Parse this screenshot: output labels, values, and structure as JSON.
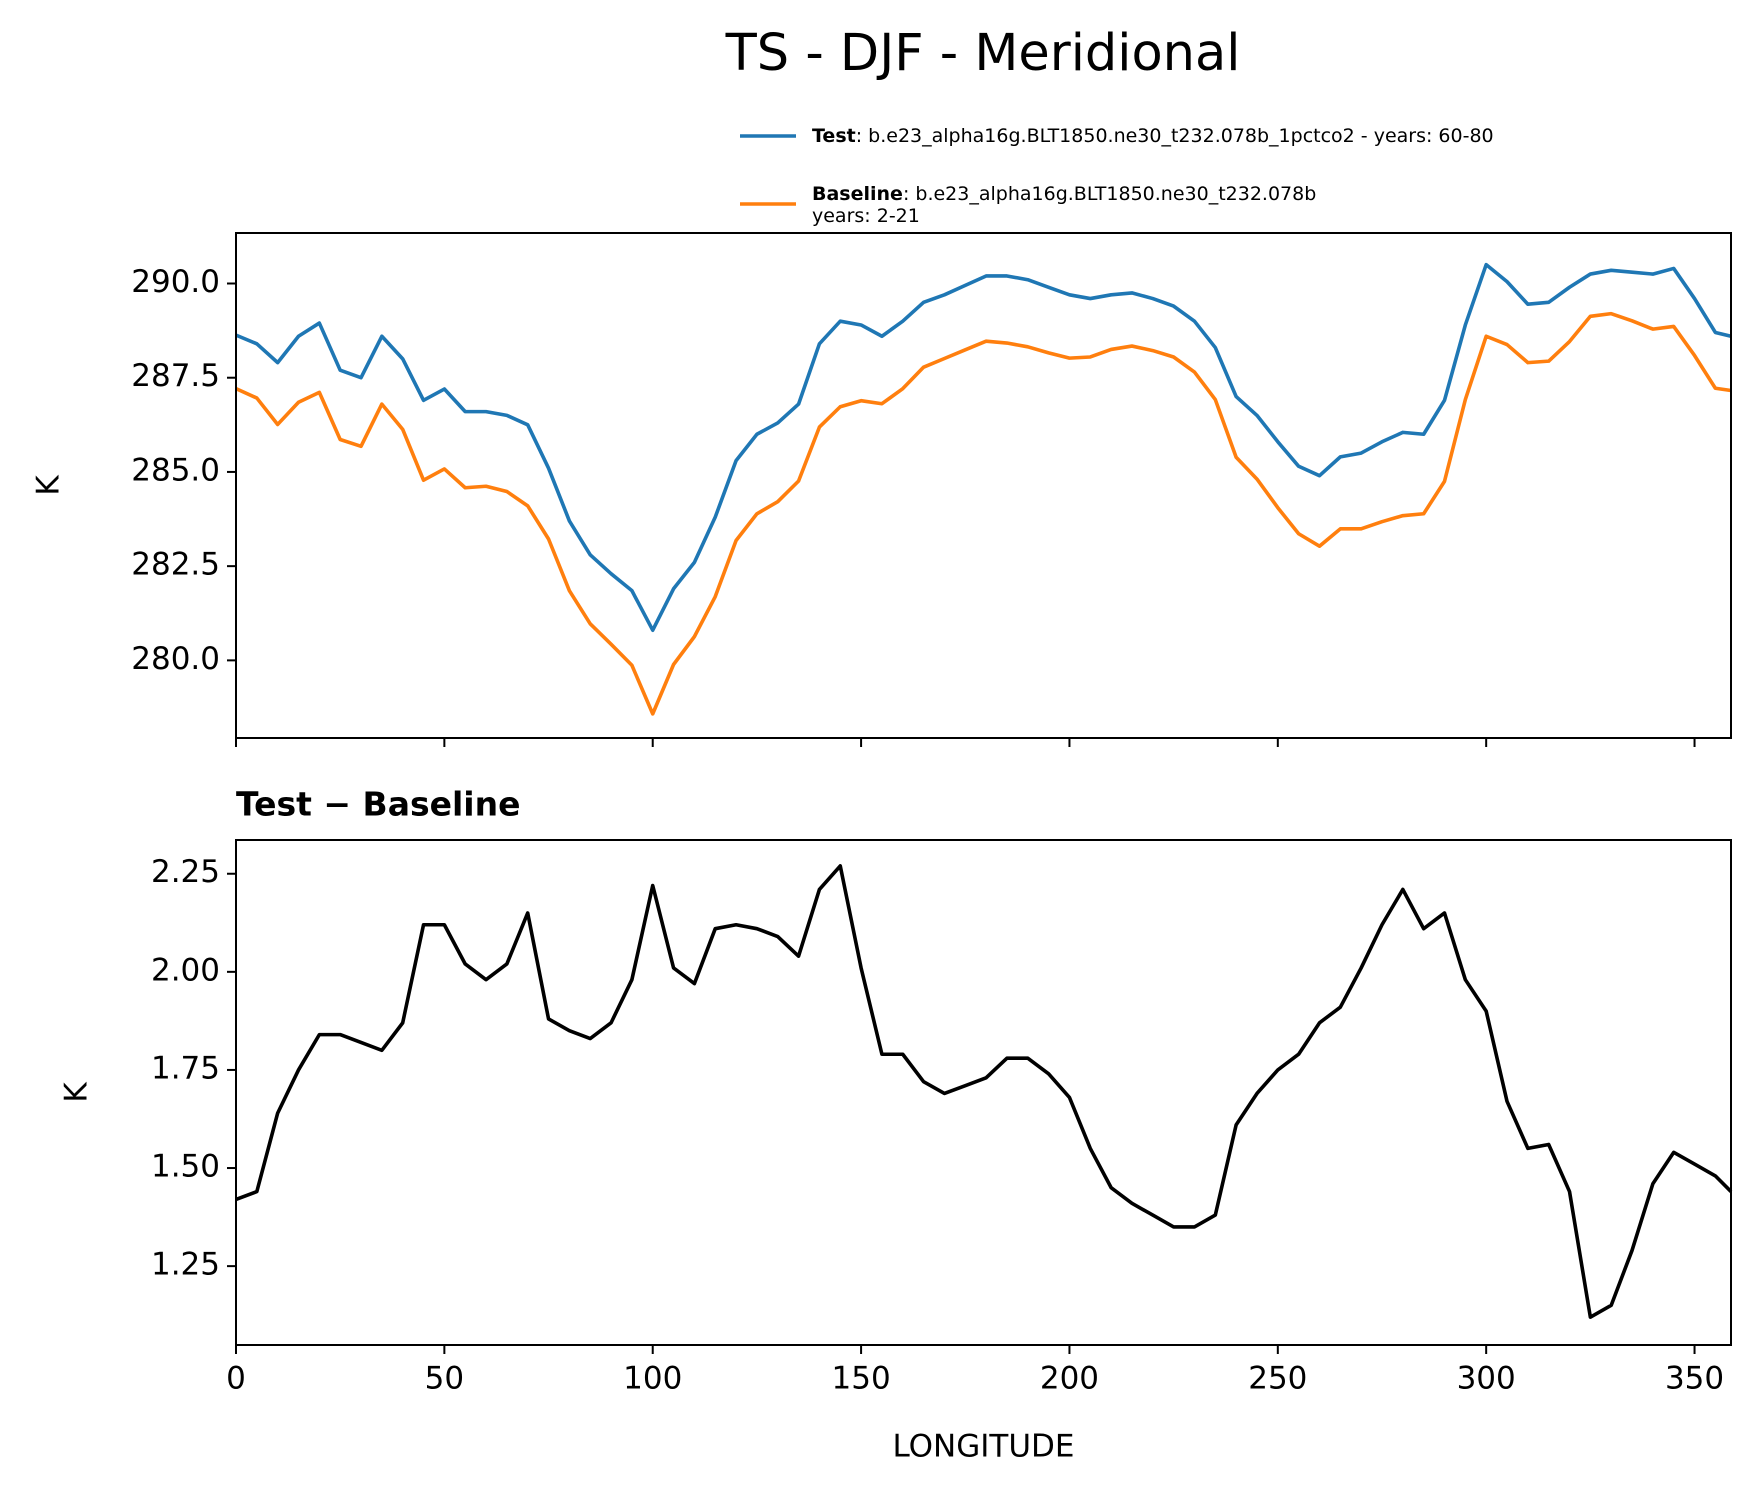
{
  "chart_data": [
    {
      "type": "line",
      "title": "TS - DJF - Meridional",
      "ylabel": "K",
      "x": [
        0,
        5,
        10,
        15,
        20,
        25,
        30,
        35,
        40,
        45,
        50,
        55,
        60,
        65,
        70,
        75,
        80,
        85,
        90,
        95,
        100,
        105,
        110,
        115,
        120,
        125,
        130,
        135,
        140,
        145,
        150,
        155,
        160,
        165,
        170,
        175,
        180,
        185,
        190,
        195,
        200,
        205,
        210,
        215,
        220,
        225,
        230,
        235,
        240,
        245,
        250,
        255,
        260,
        265,
        270,
        275,
        280,
        285,
        290,
        295,
        300,
        305,
        310,
        315,
        320,
        325,
        330,
        335,
        340,
        345,
        350,
        355,
        358.75
      ],
      "series": [
        {
          "name": "Test",
          "description": [
            ": b.e23_alpha16g.BLT1850.ne30_t232.078b_1pctco2 - years: 60-80"
          ],
          "color": "#1f77b4",
          "values": [
            288.63,
            288.4,
            287.9,
            288.6,
            288.95,
            287.7,
            287.5,
            288.6,
            288.0,
            286.9,
            287.2,
            286.6,
            286.6,
            286.5,
            286.25,
            285.1,
            283.7,
            282.8,
            282.3,
            281.85,
            280.8,
            281.9,
            282.6,
            283.8,
            285.3,
            286.0,
            286.3,
            286.8,
            288.4,
            289.0,
            288.9,
            288.6,
            289.0,
            289.5,
            289.7,
            289.95,
            290.2,
            290.2,
            290.1,
            289.9,
            289.7,
            289.6,
            289.7,
            289.75,
            289.6,
            289.4,
            289.0,
            288.3,
            287.0,
            286.5,
            285.8,
            285.15,
            284.9,
            285.4,
            285.5,
            285.8,
            286.05,
            286.0,
            286.9,
            288.9,
            290.5,
            290.05,
            289.45,
            289.5,
            289.9,
            290.25,
            290.35,
            290.3,
            290.25,
            290.4,
            289.6,
            288.7,
            288.6
          ]
        },
        {
          "name": "Baseline",
          "description": [
            ": b.e23_alpha16g.BLT1850.ne30_t232.078b",
            "years: 2-21"
          ],
          "color": "#ff7f0e",
          "values": [
            287.21,
            286.96,
            286.26,
            286.85,
            287.11,
            285.86,
            285.68,
            286.8,
            286.13,
            284.78,
            285.08,
            284.58,
            284.62,
            284.48,
            284.1,
            283.22,
            281.85,
            280.97,
            280.43,
            279.87,
            278.58,
            279.89,
            280.63,
            281.69,
            283.18,
            283.89,
            284.21,
            284.76,
            286.19,
            286.73,
            286.89,
            286.81,
            287.21,
            287.78,
            288.01,
            288.24,
            288.47,
            288.42,
            288.32,
            288.16,
            288.02,
            288.05,
            288.25,
            288.34,
            288.22,
            288.05,
            287.65,
            286.92,
            285.39,
            284.81,
            284.05,
            283.36,
            283.03,
            283.49,
            283.49,
            283.68,
            283.84,
            283.89,
            284.75,
            286.92,
            288.6,
            288.38,
            287.9,
            287.94,
            288.46,
            289.13,
            289.2,
            289.01,
            288.79,
            288.86,
            288.09,
            287.22,
            287.16
          ]
        }
      ],
      "xlim": [
        0,
        358.75
      ],
      "xticks": [
        0,
        50,
        100,
        150,
        200,
        250,
        300,
        350
      ],
      "ylim": [
        277.94,
        291.34
      ],
      "yticks": [
        {
          "value": 280,
          "label": "280.0"
        },
        {
          "value": 282.5,
          "label": "282.5"
        },
        {
          "value": 285,
          "label": "285.0"
        },
        {
          "value": 287.5,
          "label": "287.5"
        },
        {
          "value": 290,
          "label": "290.0"
        }
      ]
    },
    {
      "type": "line",
      "title": "Test − Baseline",
      "xlabel": "LONGITUDE",
      "ylabel": "K",
      "x": [
        0,
        5,
        10,
        15,
        20,
        25,
        30,
        35,
        40,
        45,
        50,
        55,
        60,
        65,
        70,
        75,
        80,
        85,
        90,
        95,
        100,
        105,
        110,
        115,
        120,
        125,
        130,
        135,
        140,
        145,
        150,
        155,
        160,
        165,
        170,
        175,
        180,
        185,
        190,
        195,
        200,
        205,
        210,
        215,
        220,
        225,
        230,
        235,
        240,
        245,
        250,
        255,
        260,
        265,
        270,
        275,
        280,
        285,
        290,
        295,
        300,
        305,
        310,
        315,
        320,
        325,
        330,
        335,
        340,
        345,
        350,
        355,
        358.75
      ],
      "series": [
        {
          "color": "#000000",
          "values": [
            1.42,
            1.44,
            1.64,
            1.75,
            1.84,
            1.84,
            1.82,
            1.8,
            1.87,
            2.12,
            2.12,
            2.02,
            1.98,
            2.02,
            2.15,
            1.88,
            1.85,
            1.83,
            1.87,
            1.98,
            2.22,
            2.01,
            1.97,
            2.11,
            2.12,
            2.11,
            2.09,
            2.04,
            2.21,
            2.27,
            2.01,
            1.79,
            1.79,
            1.72,
            1.69,
            1.71,
            1.73,
            1.78,
            1.78,
            1.74,
            1.68,
            1.55,
            1.45,
            1.41,
            1.38,
            1.35,
            1.35,
            1.38,
            1.61,
            1.69,
            1.75,
            1.79,
            1.87,
            1.91,
            2.01,
            2.12,
            2.21,
            2.11,
            2.15,
            1.98,
            1.9,
            1.67,
            1.55,
            1.56,
            1.44,
            1.12,
            1.15,
            1.29,
            1.46,
            1.54,
            1.51,
            1.48,
            1.44
          ]
        }
      ],
      "xlim": [
        0,
        358.75
      ],
      "xticks": [
        0,
        50,
        100,
        150,
        200,
        250,
        300,
        350
      ],
      "ylim": [
        1.049,
        2.336
      ],
      "yticks": [
        1.25,
        {
          "value": 1.5,
          "label": "1.50"
        },
        1.75,
        {
          "value": 2,
          "label": "2.00"
        },
        2.25
      ]
    }
  ]
}
